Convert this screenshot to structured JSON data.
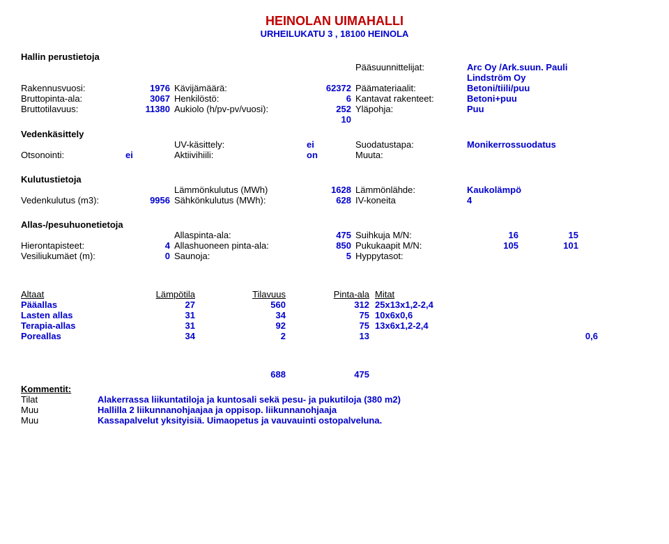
{
  "title": "HEINOLAN UIMAHALLI",
  "subtitle": "URHEILUKATU 3 , 18100 HEINOLA",
  "perustiedot_header": "Hallin perustietoja",
  "labels": {
    "paasuunn": "Pääsuunnittelijat:",
    "rakennusvuosi": "Rakennusvuosi:",
    "kavijamaara": "Kävijämäärä:",
    "paamateriaalit": "Päämateriaalit:",
    "bruttopinta": "Bruttopinta-ala:",
    "henkilosto": "Henkilöstö:",
    "kantavat": "Kantavat rakenteet:",
    "bruttotilavuus": "Bruttotilavuus:",
    "aukiolo": "Aukiolo (h/pv-pv/vuosi):",
    "ylapohja": "Yläpohja:",
    "vedenkasittely": "Vedenkäsittely",
    "uvkasittely": "UV-käsittely:",
    "suodatus": "Suodatustapa:",
    "otsonointi": "Otsonointi:",
    "aktiivihiili": "Aktiivihiili:",
    "muuta": "Muuta:",
    "kulutustietoja": "Kulutustietoja",
    "lammonkulutus": "Lämmönkulutus (MWh)",
    "lammonlahde": "Lämmönlähde:",
    "vedenkulutus": "Vedenkulutus (m3):",
    "sahkonkulutus": "Sähkönkulutus (MWh):",
    "ivkoneita": "IV-koneita",
    "allaspes": "Allas-/pesuhuonetietoja",
    "allaspinta": "Allaspinta-ala:",
    "suihkuja": "Suihkuja M/N:",
    "hieronta": "Hierontapisteet:",
    "allashuone": "Allashuoneen pinta-ala:",
    "pukukaapit": "Pukukaapit M/N:",
    "vesiliuku": "Vesiliukumäet (m):",
    "saunoja": "Saunoja:",
    "hyppytasot": "Hyppytasot:"
  },
  "values": {
    "arc": "Arc Oy /Ark.suun. Pauli Lindström Oy",
    "rakennusvuosi": "1976",
    "kavijamaara": "62372",
    "paamateriaalit": "Betoni/tiili/puu",
    "bruttopinta": "3067",
    "henkilosto": "6",
    "kantavat": "Betoni+puu",
    "bruttotilavuus": "11380",
    "aukiolo": "252",
    "aukiolo2": "10",
    "ylapohja": "Puu",
    "uv": "ei",
    "suodatus": "Monikerrossuodatus",
    "otsonointi": "ei",
    "aktiivihiili": "on",
    "lammonkulutus": "1628",
    "lammonlahde": "Kaukolämpö",
    "vedenkulutus": "9956",
    "sahkonkulutus": "628",
    "ivkoneita": "4",
    "allaspinta": "475",
    "suihkuja_m": "16",
    "suihkuja_n": "15",
    "hieronta": "4",
    "allashuone": "850",
    "pukukaapit_m": "105",
    "pukukaapit_n": "101",
    "vesiliuku": "0",
    "saunoja": "5",
    "sum1": "688",
    "sum2": "475"
  },
  "pools": {
    "headers": {
      "altaat": "Altaat",
      "lampotila": "Lämpötila",
      "tilavuus": "Tilavuus",
      "pinta": "Pinta-ala",
      "mitat": "Mitat"
    },
    "rows": [
      {
        "name": "Pääallas",
        "temp": "27",
        "vol": "560",
        "area": "312",
        "dims": "25x13x1,2-2,4",
        "extra": ""
      },
      {
        "name": "Lasten allas",
        "temp": "31",
        "vol": "34",
        "area": "75",
        "dims": "10x6x0,6",
        "extra": ""
      },
      {
        "name": "Terapia-allas",
        "temp": "31",
        "vol": "92",
        "area": "75",
        "dims": "13x6x1,2-2,4",
        "extra": ""
      },
      {
        "name": "Poreallas",
        "temp": "34",
        "vol": "2",
        "area": "13",
        "dims": "",
        "extra": "0,6"
      }
    ]
  },
  "comments": {
    "header": "Kommentit:",
    "tilat_lbl": "Tilat",
    "tilat": "Alakerrassa liikuntatiloja ja kuntosali sekä pesu- ja pukutiloja (380 m2)",
    "muu_lbl": "Muu",
    "muu1": "Hallilla 2 liikunnanohjaajaa ja oppisop. liikunnanohjaaja",
    "muu2": "Kassapalvelut yksityisiä. Uimaopetus ja vauvauinti ostopalveluna."
  }
}
